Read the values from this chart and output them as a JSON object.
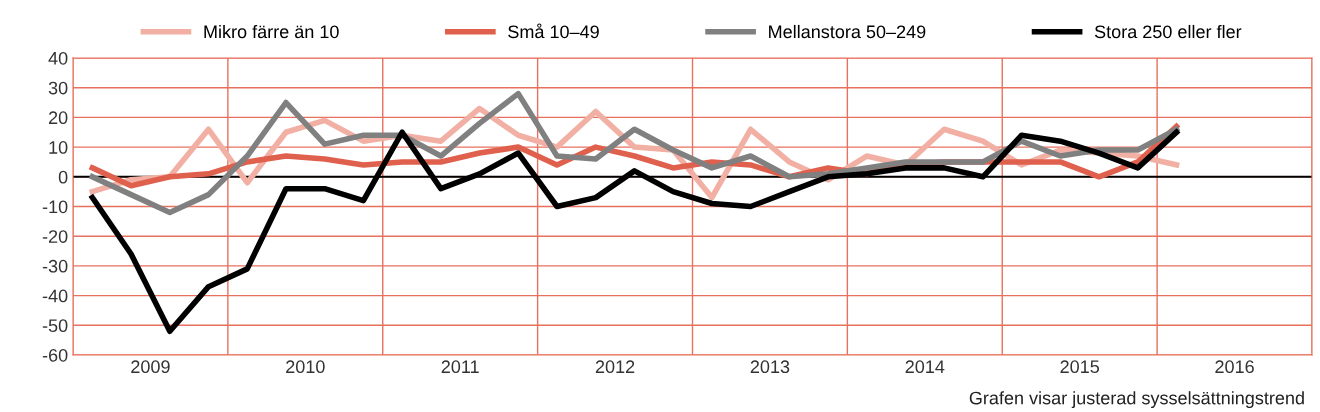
{
  "chart_data": {
    "type": "line",
    "x": [
      2009.125,
      2009.375,
      2009.625,
      2009.875,
      2010.125,
      2010.375,
      2010.625,
      2010.875,
      2011.125,
      2011.375,
      2011.625,
      2011.875,
      2012.125,
      2012.375,
      2012.625,
      2012.875,
      2013.125,
      2013.375,
      2013.625,
      2013.875,
      2014.125,
      2014.375,
      2014.625,
      2014.875,
      2015.125,
      2015.375,
      2015.625,
      2015.875,
      2016.125
    ],
    "series": [
      {
        "name": "Mikro färre än 10",
        "color": "#f2b0a4",
        "values": [
          -5,
          -1,
          0,
          16,
          -2,
          15,
          19,
          12,
          14,
          12,
          23,
          14,
          10,
          22,
          10,
          9,
          -7,
          16,
          5,
          -1,
          7,
          4,
          16,
          12,
          4,
          9,
          8,
          7,
          4
        ]
      },
      {
        "name": "Små 10–49",
        "color": "#e0604e",
        "values": [
          3,
          -3,
          0,
          1,
          5,
          7,
          6,
          4,
          5,
          5,
          8,
          10,
          4,
          10,
          7,
          3,
          5,
          4,
          0,
          3,
          1,
          4,
          5,
          5,
          5,
          5,
          0,
          5,
          17
        ]
      },
      {
        "name": "Mellanstora 50–249",
        "color": "#808080",
        "values": [
          0,
          -6,
          -12,
          -6,
          7,
          25,
          11,
          14,
          14,
          7,
          18,
          28,
          7,
          6,
          16,
          9,
          3,
          7,
          0,
          1,
          3,
          5,
          5,
          5,
          12,
          7,
          9,
          9,
          16
        ]
      },
      {
        "name": "Stora 250 eller fler",
        "color": "#000000",
        "values": [
          -7,
          -26,
          -52,
          -37,
          -31,
          -4,
          -4,
          -8,
          15,
          -4,
          1,
          8,
          -10,
          -7,
          2,
          -5,
          -9,
          -10,
          -5,
          0,
          1,
          3,
          3,
          0,
          14,
          12,
          8,
          3,
          15
        ]
      }
    ],
    "xlim": [
      2009,
      2017
    ],
    "xticks": [
      {
        "value": 2009,
        "label": null
      },
      {
        "value": 2009.5,
        "label": "2009"
      },
      {
        "value": 2010,
        "label": null
      },
      {
        "value": 2010.5,
        "label": "2010"
      },
      {
        "value": 2011,
        "label": null
      },
      {
        "value": 2011.5,
        "label": "2011"
      },
      {
        "value": 2012,
        "label": null
      },
      {
        "value": 2012.5,
        "label": "2012"
      },
      {
        "value": 2013,
        "label": null
      },
      {
        "value": 2013.5,
        "label": "2013"
      },
      {
        "value": 2014,
        "label": null
      },
      {
        "value": 2014.5,
        "label": "2014"
      },
      {
        "value": 2015,
        "label": null
      },
      {
        "value": 2015.5,
        "label": "2015"
      },
      {
        "value": 2016,
        "label": null
      },
      {
        "value": 2016.5,
        "label": "2016"
      },
      {
        "value": 2017,
        "label": null
      }
    ],
    "ylim": [
      -60,
      40
    ],
    "yticks": [
      -60,
      -50,
      -40,
      -30,
      -20,
      -10,
      0,
      10,
      20,
      30,
      40
    ],
    "ref_lines": [
      {
        "axis": "y",
        "value": 0,
        "label": null,
        "color": "#000000"
      }
    ],
    "grid": true,
    "legend": "top",
    "marker": "none",
    "line_style": "solid",
    "annotations": [
      "Grafen visar justerad sysselsättningstrend"
    ]
  }
}
